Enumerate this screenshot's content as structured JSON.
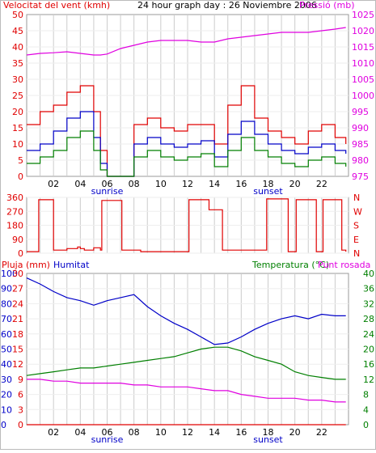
{
  "title": "24 hour graph day : 26 Noviembre 2006",
  "colors": {
    "red": "#e00000",
    "green": "#007f00",
    "blue": "#0000c8",
    "magenta": "#e000e0",
    "grid": "#cccccc",
    "frame": "#999999"
  },
  "x_ticks": [
    "02",
    "04",
    "06",
    "08",
    "10",
    "12",
    "14",
    "16",
    "18",
    "20",
    "22"
  ],
  "sunrise_label": "sunrise",
  "sunset_label": "sunset",
  "chart_data": [
    {
      "type": "line",
      "id": "wind",
      "left_axis_label": "Velocitat del vent (kmh)",
      "right_axis_label": "Pressió (mb)",
      "left_ticks": [
        0,
        5,
        10,
        15,
        20,
        25,
        30,
        35,
        40,
        45,
        50
      ],
      "right_ticks": [
        975,
        980,
        985,
        990,
        995,
        1000,
        1005,
        1010,
        1015,
        1020,
        1025
      ],
      "ylim_left": [
        0,
        50
      ],
      "ylim_right": [
        975,
        1025
      ],
      "x": [
        0,
        1,
        2,
        3,
        4,
        5,
        5.5,
        6,
        7,
        8,
        9,
        10,
        11,
        12,
        13,
        14,
        15,
        16,
        17,
        18,
        19,
        20,
        21,
        22,
        23,
        23.8
      ],
      "series": [
        {
          "axis": "left",
          "color": "red",
          "values": [
            16,
            20,
            22,
            26,
            28,
            20,
            8,
            0,
            0,
            16,
            18,
            15,
            14,
            16,
            16,
            10,
            22,
            28,
            18,
            14,
            12,
            10,
            14,
            16,
            12,
            10
          ]
        },
        {
          "axis": "left",
          "color": "blue",
          "values": [
            8,
            10,
            14,
            18,
            20,
            12,
            4,
            0,
            0,
            10,
            12,
            10,
            9,
            10,
            11,
            6,
            13,
            17,
            13,
            10,
            8,
            7,
            9,
            10,
            8,
            7
          ]
        },
        {
          "axis": "left",
          "color": "green",
          "values": [
            4,
            6,
            8,
            12,
            14,
            8,
            2,
            0,
            0,
            6,
            8,
            6,
            5,
            6,
            7,
            3,
            8,
            12,
            8,
            6,
            4,
            3,
            5,
            6,
            4,
            3
          ]
        },
        {
          "axis": "right",
          "color": "magenta",
          "values": [
            1012.5,
            1013,
            1013.2,
            1013.5,
            1013,
            1012.5,
            1012.5,
            1012.8,
            1014.5,
            1015.5,
            1016.5,
            1017,
            1017,
            1017,
            1016.5,
            1016.5,
            1017.5,
            1018,
            1018.5,
            1019,
            1019.5,
            1019.5,
            1019.5,
            1020,
            1020.5,
            1021
          ]
        }
      ]
    },
    {
      "type": "line",
      "id": "direction",
      "left_ticks": [
        0,
        90,
        180,
        270,
        360
      ],
      "right_ticks": [
        "N",
        "E",
        "S",
        "W",
        "N"
      ],
      "ylim_left": [
        0,
        360
      ],
      "x": [
        0,
        0.8,
        0.9,
        1.8,
        2,
        3,
        3.8,
        4,
        4.3,
        5,
        5.5,
        5.6,
        7,
        7.1,
        8.5,
        9,
        11,
        12,
        12.1,
        13.5,
        13.6,
        14.5,
        14.6,
        17.8,
        17.9,
        18.5,
        19.5,
        20,
        20.1,
        21.5,
        21.6,
        22,
        22.1,
        23,
        23.5,
        23.8
      ],
      "series": [
        {
          "color": "red",
          "values": [
            10,
            10,
            345,
            345,
            20,
            30,
            40,
            30,
            20,
            35,
            20,
            340,
            340,
            20,
            10,
            10,
            10,
            10,
            345,
            345,
            280,
            280,
            20,
            20,
            350,
            350,
            10,
            10,
            345,
            345,
            10,
            10,
            345,
            345,
            20,
            10
          ]
        }
      ]
    },
    {
      "type": "line",
      "id": "rain-humidity-temperature",
      "rain_label": "Pluja (mm)",
      "humidity_label": "Humitat",
      "temperature_label": "Temperatura (°C)",
      "dewpoint_label": "Punt rosada",
      "rain_ticks": [
        0,
        3,
        6,
        9,
        12,
        15,
        18,
        21,
        24,
        27,
        30
      ],
      "humidity_ticks": [
        0,
        10,
        20,
        30,
        40,
        50,
        60,
        70,
        80,
        90,
        100
      ],
      "temp_ticks": [
        0,
        4,
        8,
        12,
        16,
        20,
        24,
        28,
        32,
        36,
        40
      ],
      "ylim_rain": [
        0,
        30
      ],
      "ylim_humidity": [
        0,
        100
      ],
      "ylim_temp": [
        0,
        40
      ],
      "x": [
        0,
        1,
        2,
        3,
        4,
        5,
        6,
        7,
        8,
        9,
        10,
        11,
        12,
        13,
        14,
        15,
        16,
        17,
        18,
        19,
        20,
        21,
        22,
        23,
        23.8
      ],
      "series": [
        {
          "name": "Pluja (mm)",
          "axis": "rain",
          "color": "red",
          "values": [
            0,
            0,
            0,
            0,
            0,
            0,
            0,
            0,
            0,
            0,
            0,
            0,
            0,
            0,
            0,
            0,
            0,
            0,
            0,
            0,
            0,
            0,
            0,
            0,
            0
          ]
        },
        {
          "name": "Humitat",
          "axis": "humidity",
          "color": "blue",
          "values": [
            97,
            93,
            88,
            84,
            82,
            79,
            82,
            84,
            86,
            78,
            72,
            67,
            63,
            58,
            53,
            54,
            58,
            63,
            67,
            70,
            72,
            70,
            73,
            72,
            72
          ]
        },
        {
          "name": "Temperatura (°C)",
          "axis": "temp",
          "color": "green",
          "values": [
            13,
            13.5,
            14,
            14.5,
            15,
            15,
            15.5,
            16,
            16.5,
            17,
            17.5,
            18,
            19,
            20,
            20.5,
            20.5,
            19.5,
            18,
            17,
            16,
            14,
            13,
            12.5,
            12,
            12
          ]
        },
        {
          "name": "Punt rosada",
          "axis": "temp",
          "color": "magenta",
          "values": [
            12,
            12,
            11.5,
            11.5,
            11,
            11,
            11,
            11,
            10.5,
            10.5,
            10,
            10,
            10,
            9.5,
            9,
            9,
            8,
            7.5,
            7,
            7,
            7,
            6.5,
            6.5,
            6,
            6
          ]
        }
      ]
    }
  ]
}
